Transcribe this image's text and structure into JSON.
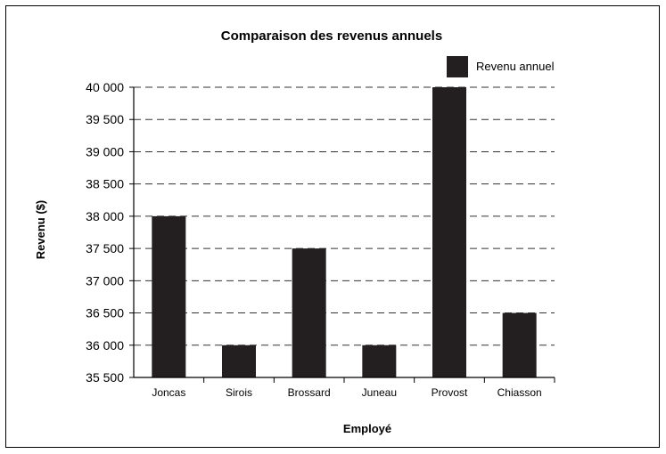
{
  "chart_data": {
    "type": "bar",
    "title": "Comparaison des revenus annuels",
    "xlabel": "Employé",
    "ylabel": "Revenu ($)",
    "categories": [
      "Joncas",
      "Sirois",
      "Brossard",
      "Juneau",
      "Provost",
      "Chiasson"
    ],
    "series": [
      {
        "name": "Revenu annuel",
        "values": [
          38000,
          36000,
          37500,
          36000,
          40000,
          36500
        ]
      }
    ],
    "ylim": [
      35500,
      40000
    ],
    "yticks": [
      35500,
      36000,
      36500,
      37000,
      37500,
      38000,
      38500,
      39000,
      39500,
      40000
    ],
    "ytick_labels": [
      "35 500",
      "36 000",
      "36 500",
      "37 000",
      "37 500",
      "38 000",
      "38 500",
      "39 000",
      "39 500",
      "40 000"
    ],
    "grid": "horizontal dashed",
    "legend_position": "top-right",
    "colors": {
      "bar": "#231f20",
      "grid": "#333333",
      "axis": "#000000"
    }
  }
}
